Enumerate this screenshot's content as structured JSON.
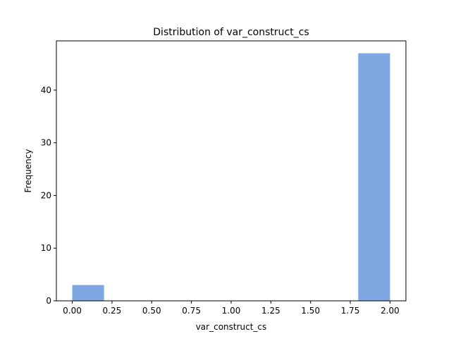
{
  "chart_data": {
    "type": "bar",
    "title": "Distribution of  var_construct_cs",
    "xlabel": "var_construct_cs",
    "ylabel": "Frequency",
    "xlim": [
      -0.1,
      2.1
    ],
    "ylim": [
      0,
      49.35
    ],
    "x_ticks": [
      0.0,
      0.25,
      0.5,
      0.75,
      1.0,
      1.25,
      1.5,
      1.75,
      2.0
    ],
    "x_tick_labels": [
      "0.00",
      "0.25",
      "0.50",
      "0.75",
      "1.00",
      "1.25",
      "1.50",
      "1.75",
      "2.00"
    ],
    "y_ticks": [
      0,
      10,
      20,
      30,
      40
    ],
    "y_tick_labels": [
      "0",
      "10",
      "20",
      "30",
      "40"
    ],
    "bins": [
      {
        "x0": 0.0,
        "x1": 0.2,
        "value": 3
      },
      {
        "x0": 0.2,
        "x1": 0.4,
        "value": 0
      },
      {
        "x0": 0.4,
        "x1": 0.6,
        "value": 0
      },
      {
        "x0": 0.6,
        "x1": 0.8,
        "value": 0
      },
      {
        "x0": 0.8,
        "x1": 1.0,
        "value": 0
      },
      {
        "x0": 1.0,
        "x1": 1.2,
        "value": 0
      },
      {
        "x0": 1.2,
        "x1": 1.4,
        "value": 0
      },
      {
        "x0": 1.4,
        "x1": 1.6,
        "value": 0
      },
      {
        "x0": 1.6,
        "x1": 1.8,
        "value": 0
      },
      {
        "x0": 1.8,
        "x1": 2.0,
        "value": 47
      }
    ],
    "bar_color": "#7fa7e1",
    "grid": false,
    "legend": false
  }
}
